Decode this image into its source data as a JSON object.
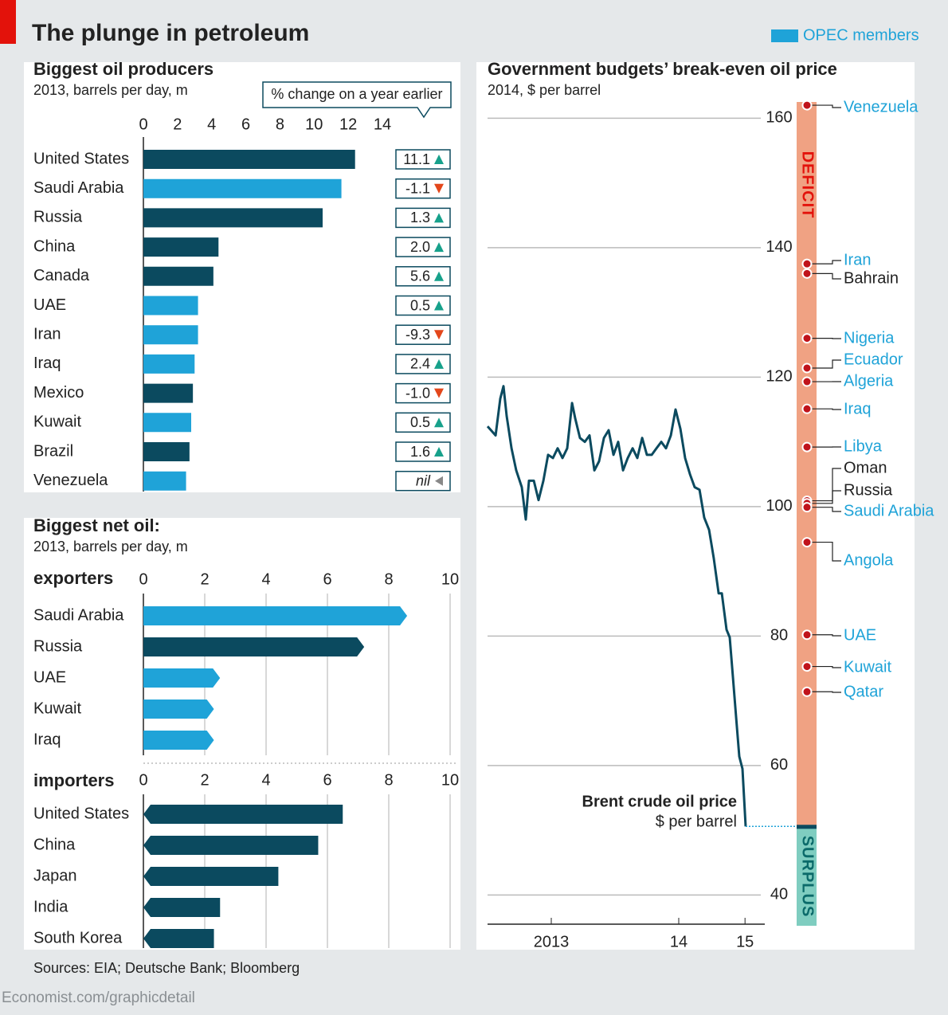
{
  "title": "The plunge in petroleum",
  "legend": {
    "label": "OPEC members",
    "color": "#1fa3d8"
  },
  "chart_data": [
    {
      "type": "bar",
      "title": "Biggest oil producers",
      "subtitle": "2013, barrels per day, m",
      "categories": [
        "United States",
        "Saudi Arabia",
        "Russia",
        "China",
        "Canada",
        "UAE",
        "Iran",
        "Iraq",
        "Mexico",
        "Kuwait",
        "Brazil",
        "Venezuela"
      ],
      "values": [
        12.4,
        11.6,
        10.5,
        4.4,
        4.1,
        3.2,
        3.2,
        3.0,
        2.9,
        2.8,
        2.7,
        2.5
      ],
      "colors": [
        "#0b4a5f",
        "#1fa3d8",
        "#0b4a5f",
        "#0b4a5f",
        "#0b4a5f",
        "#1fa3d8",
        "#1fa3d8",
        "#1fa3d8",
        "#0b4a5f",
        "#1fa3d8",
        "#0b4a5f",
        "#1fa3d8"
      ],
      "xlim": [
        0,
        14
      ],
      "xticks": [
        0,
        2,
        4,
        6,
        8,
        10,
        12,
        14
      ],
      "grid": false,
      "change_title": "% change on a year earlier",
      "change_labels": [
        "11.1",
        "-1.1",
        "1.3",
        "2.0",
        "5.6",
        "0.5",
        "-9.3",
        "2.4",
        "-1.0",
        "0.5",
        "1.6",
        "nil"
      ]
    },
    {
      "type": "bar",
      "title": "Biggest net oil:",
      "subtitle": "2013, barrels per day, m",
      "label": "exporters",
      "arrow": "right",
      "categories": [
        "Saudi Arabia",
        "Russia",
        "UAE",
        "Kuwait",
        "Iraq"
      ],
      "values": [
        8.6,
        7.2,
        2.5,
        2.3,
        2.3
      ],
      "colors": [
        "#1fa3d8",
        "#0b4a5f",
        "#1fa3d8",
        "#1fa3d8",
        "#1fa3d8"
      ],
      "xlim": [
        0,
        10
      ],
      "xticks": [
        0,
        2,
        4,
        6,
        8,
        10
      ],
      "grid": true
    },
    {
      "type": "bar",
      "label": "importers",
      "arrow": "left",
      "categories": [
        "United States",
        "China",
        "Japan",
        "India",
        "South Korea"
      ],
      "values": [
        6.5,
        5.7,
        4.4,
        2.5,
        2.3
      ],
      "colors": [
        "#0b4a5f",
        "#0b4a5f",
        "#0b4a5f",
        "#0b4a5f",
        "#0b4a5f"
      ],
      "xlim": [
        0,
        10
      ],
      "xticks": [
        0,
        2,
        4,
        6,
        8,
        10
      ],
      "grid": true
    },
    {
      "type": "line",
      "title": "Government budgets’ break-even oil price",
      "subtitle": "2014, $ per barrel",
      "x": [
        2013.0,
        2013.063,
        2013.1,
        2013.125,
        2013.15,
        2013.188,
        2013.225,
        2013.269,
        2013.3,
        2013.325,
        2013.363,
        2013.4,
        2013.438,
        2013.475,
        2013.513,
        2013.55,
        2013.588,
        2013.625,
        2013.663,
        2013.688,
        2013.725,
        2013.763,
        2013.8,
        2013.838,
        2013.875,
        2013.913,
        2013.95,
        2013.988,
        2014.025,
        2014.063,
        2014.1,
        2014.138,
        2014.175,
        2014.213,
        2014.25,
        2014.288,
        2014.325,
        2014.363,
        2014.4,
        2014.438,
        2014.475,
        2014.513,
        2014.55,
        2014.588,
        2014.625,
        2014.663,
        2014.7,
        2014.738,
        2014.775,
        2014.813,
        2014.838,
        2014.875,
        2014.9,
        2014.925,
        2014.95,
        2014.975,
        2015.0,
        2015.025
      ],
      "series": [
        {
          "name": "Brent crude oil price",
          "color": "#0b4a5f",
          "values": [
            112.4,
            111,
            116.7,
            118.6,
            114,
            109,
            105.6,
            103,
            98,
            104,
            104,
            101,
            104,
            108,
            107.5,
            109,
            107.5,
            109,
            116,
            113.6,
            110.6,
            110,
            111,
            105.6,
            107,
            110.6,
            111.8,
            108,
            110,
            105.6,
            107.5,
            109,
            107.5,
            110.6,
            108,
            108,
            109,
            110,
            109,
            111,
            115,
            112,
            107.5,
            105,
            103,
            102.6,
            98.3,
            96.4,
            92,
            86.6,
            86.6,
            81,
            79.8,
            73.7,
            67.5,
            61.4,
            59.5,
            50.6
          ]
        }
      ],
      "annotation": "$ per barrel",
      "xlim": [
        2013.0,
        2015.05
      ],
      "xticks": [
        {
          "value": 2013.5,
          "label": "2013"
        },
        {
          "value": 2014.5,
          "label": "14"
        },
        {
          "value": 2015.02,
          "label": "15"
        }
      ],
      "ylim": [
        35.5,
        162.5
      ],
      "yticks": [
        40,
        60,
        80,
        100,
        120,
        140,
        160
      ],
      "grid": true,
      "points": {
        "categories": [
          "Venezuela",
          "Iran",
          "Bahrain",
          "Nigeria",
          "Ecuador",
          "Algeria",
          "Iraq",
          "Libya",
          "Oman",
          "Russia",
          "Saudi Arabia",
          "Angola",
          "UAE",
          "Kuwait",
          "Qatar"
        ],
        "values": [
          162,
          137.5,
          136,
          126,
          121.4,
          119.3,
          115.1,
          109.2,
          100.9,
          100.5,
          99.9,
          94.5,
          80.2,
          75.3,
          71.4
        ],
        "colors": [
          "#1fa3d8",
          "#1fa3d8",
          "#222222",
          "#1fa3d8",
          "#1fa3d8",
          "#1fa3d8",
          "#1fa3d8",
          "#1fa3d8",
          "#222222",
          "#222222",
          "#1fa3d8",
          "#1fa3d8",
          "#1fa3d8",
          "#1fa3d8",
          "#1fa3d8"
        ]
      },
      "zones": [
        "DEFICIT",
        "SURPLUS"
      ]
    }
  ],
  "source": "Sources: EIA; Deutsche Bank; Bloomberg",
  "footer": "Economist.com/graphicdetail"
}
